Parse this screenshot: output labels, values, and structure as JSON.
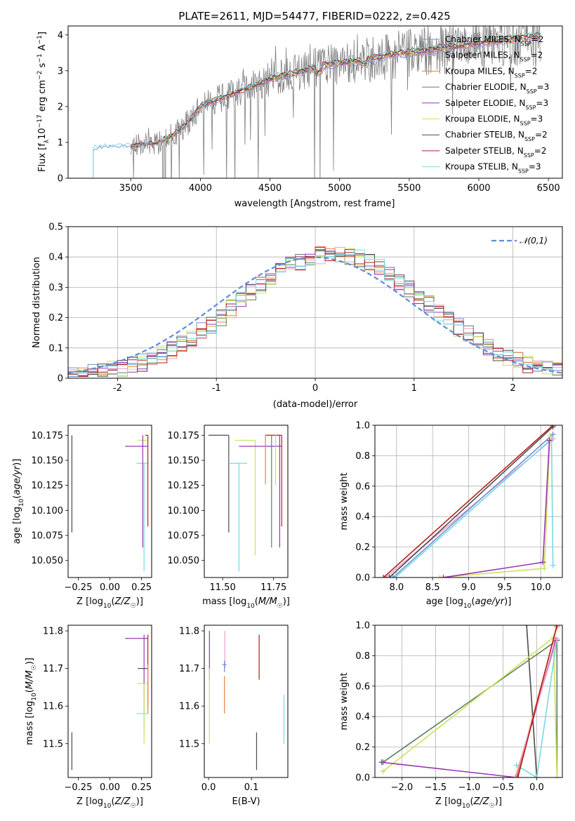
{
  "colors": {
    "chabrier_miles": "#6f8fd6",
    "salpeter_miles": "#e7a0cf",
    "kroupa_miles": "#e8823a",
    "chabrier_elodie": "#5c7f62",
    "salpeter_elodie": "#9a36b3",
    "kroupa_elodie": "#cde158",
    "chabrier_stelib": "#4b4b4b",
    "salpeter_stelib": "#b91d1d",
    "kroupa_stelib": "#78d9e3",
    "gauss": "#5b8dd9",
    "data": "#7f7f7f"
  },
  "chart_data": [
    {
      "type": "line",
      "title": "PLATE=2611, MJD=54477, FIBERID=0222, z=0.425",
      "xlabel": "wavelength [Angstrom, rest frame]",
      "ylabel": "Flux [f_λ 10^-17 erg cm^-2 s^-1 A^-1]",
      "xlim": [
        3050,
        6600
      ],
      "ylim": [
        0,
        4.25
      ],
      "xticks": [
        3500,
        4000,
        4500,
        5000,
        5500,
        6000,
        6500
      ],
      "yticks": [
        0,
        1,
        2,
        3,
        4
      ],
      "legend_position": "right",
      "series": [
        {
          "name": "Chabrier MILES, N_SSP=2",
          "key": "chabrier_miles"
        },
        {
          "name": "Salpeter MILES, N_SSP=2",
          "key": "salpeter_miles"
        },
        {
          "name": "Kroupa MILES, N_SSP=2",
          "key": "kroupa_miles"
        },
        {
          "name": "Chabrier ELODIE, N_SSP=3",
          "key": "chabrier_elodie"
        },
        {
          "name": "Salpeter ELODIE, N_SSP=3",
          "key": "salpeter_elodie"
        },
        {
          "name": "Kroupa ELODIE, N_SSP=3",
          "key": "kroupa_elodie"
        },
        {
          "name": "Chabrier STELIB, N_SSP=2",
          "key": "chabrier_stelib"
        },
        {
          "name": "Salpeter STELIB, N_SSP=2",
          "key": "salpeter_stelib"
        },
        {
          "name": "Kroupa STELIB, N_SSP=3",
          "key": "kroupa_stelib"
        }
      ],
      "continuum": [
        [
          3230,
          0.85
        ],
        [
          3300,
          0.9
        ],
        [
          3400,
          0.88
        ],
        [
          3500,
          0.9
        ],
        [
          3600,
          0.95
        ],
        [
          3700,
          1.0
        ],
        [
          3800,
          1.2
        ],
        [
          3900,
          1.5
        ],
        [
          4000,
          2.0
        ],
        [
          4100,
          2.15
        ],
        [
          4200,
          2.3
        ],
        [
          4300,
          2.45
        ],
        [
          4400,
          2.6
        ],
        [
          4500,
          2.75
        ],
        [
          4600,
          2.85
        ],
        [
          4700,
          2.95
        ],
        [
          4800,
          3.05
        ],
        [
          4900,
          3.15
        ],
        [
          5000,
          3.2
        ],
        [
          5200,
          3.3
        ],
        [
          5400,
          3.45
        ],
        [
          5600,
          3.55
        ],
        [
          5800,
          3.65
        ],
        [
          6000,
          3.75
        ],
        [
          6200,
          3.85
        ],
        [
          6450,
          3.95
        ]
      ]
    },
    {
      "type": "histogram",
      "xlabel": "(data-model)/error",
      "ylabel": "Normed distribution",
      "xlim": [
        -2.5,
        2.5
      ],
      "ylim": [
        0,
        0.5
      ],
      "xticks": [
        -2,
        -1,
        0,
        1,
        2
      ],
      "yticks": [
        0.0,
        0.1,
        0.2,
        0.3,
        0.4,
        0.5
      ],
      "grid": true,
      "legend_position": "top-right",
      "gauss_label": "𝒩(0,1)",
      "bin_width": 0.1
    },
    {
      "type": "scatter-errorbar",
      "xlabel": "Z [log10(Z/Z☉)]",
      "ylabel": "age  [log10(age/yr)]",
      "xlim": [
        -0.33,
        0.33
      ],
      "ylim": [
        10.033,
        10.185
      ],
      "xticks": [
        -0.25,
        0.0,
        0.25
      ],
      "xtick_labels": [
        "−0.25",
        "0.00",
        "0.25"
      ],
      "yticks": [
        10.05,
        10.075,
        10.1,
        10.125,
        10.15,
        10.175
      ],
      "ytick_labels": [
        "10.050",
        "10.075",
        "10.100",
        "10.125",
        "10.150",
        "10.175"
      ],
      "points": [
        {
          "key": "chabrier_stelib",
          "x": -0.3,
          "xl": -0.3,
          "xh": -0.3,
          "y": 10.175,
          "yl": 10.078,
          "yh": 10.175
        },
        {
          "key": "kroupa_elodie",
          "x": 0.27,
          "xl": 0.22,
          "xh": 0.3,
          "y": 10.17,
          "yl": 10.17,
          "yh": 10.17
        },
        {
          "key": "salpeter_elodie",
          "x": 0.27,
          "xl": 0.12,
          "xh": 0.3,
          "y": 10.164,
          "yl": 10.164,
          "yh": 10.164
        },
        {
          "key": "kroupa_stelib",
          "x": 0.27,
          "xl": 0.21,
          "xh": 0.3,
          "y": 10.147,
          "yl": 10.039,
          "yh": 10.147
        },
        {
          "key": "salpeter_stelib",
          "x": 0.3,
          "xl": 0.28,
          "xh": 0.3,
          "y": 10.175,
          "yl": 10.084,
          "yh": 10.175
        },
        {
          "key": "salpeter_elodie",
          "x": 0.26,
          "xl": 0.26,
          "xh": 0.26,
          "y": 10.175,
          "yl": 10.063,
          "yh": 10.175
        }
      ]
    },
    {
      "type": "scatter-errorbar",
      "xlabel": "mass [log10(M/M☉)]",
      "ylabel": "",
      "xlim": [
        11.41,
        11.82
      ],
      "ylim": [
        10.033,
        10.185
      ],
      "xticks": [
        11.5,
        11.75
      ],
      "xtick_labels": [
        "11.50",
        "11.75"
      ],
      "yticks": [
        10.05,
        10.075,
        10.1,
        10.125,
        10.15,
        10.175
      ],
      "ytick_labels": [
        "10.050",
        "10.075",
        "10.100",
        "10.125",
        "10.150",
        "10.175"
      ],
      "points": [
        {
          "key": "chabrier_stelib",
          "x": 11.53,
          "xl": 11.43,
          "xh": 11.53,
          "y": 10.175,
          "yl": 10.078,
          "yh": 10.175
        },
        {
          "key": "kroupa_elodie",
          "x": 11.66,
          "xl": 11.56,
          "xh": 11.66,
          "y": 10.17,
          "yl": 10.055,
          "yh": 10.17
        },
        {
          "key": "salpeter_elodie",
          "x": 11.78,
          "xl": 11.58,
          "xh": 11.79,
          "y": 10.164,
          "yl": 10.063,
          "yh": 10.175
        },
        {
          "key": "kroupa_stelib",
          "x": 11.58,
          "xl": 11.53,
          "xh": 11.62,
          "y": 10.147,
          "yl": 10.039,
          "yh": 10.147
        },
        {
          "key": "salpeter_stelib",
          "x": 11.79,
          "xl": 11.71,
          "xh": 11.79,
          "y": 10.175,
          "yl": 10.084,
          "yh": 10.175
        },
        {
          "key": "kroupa_miles",
          "x": 11.71,
          "xl": 11.71,
          "xh": 11.71,
          "y": 10.175,
          "yl": 10.126,
          "yh": 10.175
        },
        {
          "key": "chabrier_elodie",
          "x": 11.74,
          "xl": 11.74,
          "xh": 11.74,
          "y": 10.175,
          "yl": 10.063,
          "yh": 10.175
        },
        {
          "key": "kroupa_elodie",
          "x": 11.76,
          "xl": 11.76,
          "xh": 11.76,
          "y": 10.175,
          "yl": 10.125,
          "yh": 10.175
        }
      ]
    },
    {
      "type": "line",
      "xlabel": "age  [log10(age/yr)]",
      "ylabel": "mass weight",
      "xlim": [
        7.7,
        10.3
      ],
      "ylim": [
        0,
        1
      ],
      "xticks": [
        8.0,
        8.5,
        9.0,
        9.5,
        10.0
      ],
      "xtick_labels": [
        "8.0",
        "8.5",
        "9.0",
        "9.5",
        "10.0"
      ],
      "yticks": [
        0,
        0.2,
        0.4,
        0.6,
        0.8,
        1.0
      ],
      "ytick_labels": [
        "0.0",
        "0.2",
        "0.4",
        "0.6",
        "0.8",
        "1.0"
      ],
      "grid": true,
      "series": [
        {
          "key": "salpeter_miles",
          "points": [
            [
              7.85,
              0.0
            ],
            [
              10.17,
              0.91
            ]
          ]
        },
        {
          "key": "chabrier_miles",
          "points": [
            [
              7.95,
              0.0
            ],
            [
              10.17,
              0.94
            ]
          ]
        },
        {
          "key": "chabrier_stelib",
          "points": [
            [
              7.9,
              0.0
            ],
            [
              10.17,
              0.99
            ]
          ]
        },
        {
          "key": "salpeter_stelib",
          "points": [
            [
              7.82,
              0.0
            ],
            [
              10.17,
              1.0
            ]
          ]
        },
        {
          "key": "kroupa_stelib",
          "points": [
            [
              7.98,
              0.0
            ],
            [
              10.15,
              0.91
            ],
            [
              10.17,
              0.08
            ]
          ]
        },
        {
          "key": "kroupa_elodie",
          "points": [
            [
              8.6,
              0.0
            ],
            [
              10.05,
              0.06
            ],
            [
              10.13,
              0.93
            ]
          ]
        },
        {
          "key": "salpeter_elodie",
          "points": [
            [
              8.65,
              0.0
            ],
            [
              10.03,
              0.1
            ],
            [
              10.12,
              0.9
            ]
          ]
        }
      ]
    },
    {
      "type": "scatter-errorbar",
      "xlabel": "Z [log10(Z/Z☉)]",
      "ylabel": "mass [log10(M/M☉)]",
      "xlim": [
        -0.33,
        0.33
      ],
      "ylim": [
        11.41,
        11.815
      ],
      "xticks": [
        -0.25,
        0.0,
        0.25
      ],
      "xtick_labels": [
        "−0.25",
        "0.00",
        "0.25"
      ],
      "yticks": [
        11.5,
        11.6,
        11.7,
        11.8
      ],
      "ytick_labels": [
        "11.5",
        "11.6",
        "11.7",
        "11.8"
      ],
      "points": [
        {
          "key": "chabrier_stelib",
          "x": -0.3,
          "xl": -0.3,
          "xh": -0.3,
          "y": 11.53,
          "yl": 11.43,
          "yh": 11.53
        },
        {
          "key": "salpeter_elodie",
          "x": 0.27,
          "xl": 0.12,
          "xh": 0.3,
          "y": 11.78,
          "yl": 11.58,
          "yh": 11.79
        },
        {
          "key": "kroupa_stelib",
          "x": 0.27,
          "xl": 0.21,
          "xh": 0.3,
          "y": 11.58,
          "yl": 11.53,
          "yh": 11.62
        },
        {
          "key": "kroupa_elodie",
          "x": 0.27,
          "xl": 0.22,
          "xh": 0.3,
          "y": 11.66,
          "yl": 11.5,
          "yh": 11.66
        },
        {
          "key": "chabrier_stelib",
          "x": 0.27,
          "xl": 0.22,
          "xh": 0.3,
          "y": 11.7,
          "yl": 11.7,
          "yh": 11.7
        },
        {
          "key": "salpeter_stelib",
          "x": 0.3,
          "xl": 0.3,
          "xh": 0.3,
          "y": 11.79,
          "yl": 11.6,
          "yh": 11.79
        },
        {
          "key": "kroupa_miles",
          "x": 0.3,
          "xl": 0.3,
          "xh": 0.3,
          "y": 11.71,
          "yl": 11.58,
          "yh": 11.71
        }
      ]
    },
    {
      "type": "scatter-errorbar",
      "xlabel": "E(B-V)",
      "ylabel": "",
      "xlim": [
        -0.01,
        0.185
      ],
      "ylim": [
        11.41,
        11.815
      ],
      "xticks": [
        0.0,
        0.1
      ],
      "xtick_labels": [
        "0.0",
        "0.1"
      ],
      "yticks": [
        11.5,
        11.6,
        11.7,
        11.8
      ],
      "ytick_labels": [
        "11.5",
        "11.6",
        "11.7",
        "11.8"
      ],
      "points": [
        {
          "key": "salpeter_elodie",
          "x": 0.002,
          "xl": 0.002,
          "xh": 0.002,
          "y": 11.8,
          "yl": 11.67,
          "yh": 11.8
        },
        {
          "key": "kroupa_elodie",
          "x": 0.002,
          "xl": 0.002,
          "xh": 0.002,
          "y": 11.7,
          "yl": 11.5,
          "yh": 11.7
        },
        {
          "key": "salpeter_miles",
          "x": 0.038,
          "xl": 0.038,
          "xh": 0.038,
          "y": 11.8,
          "yl": 11.7,
          "yh": 11.8
        },
        {
          "key": "chabrier_miles",
          "x": 0.037,
          "xl": 0.032,
          "xh": 0.042,
          "y": 11.71,
          "yl": 11.69,
          "yh": 11.72
        },
        {
          "key": "kroupa_miles",
          "x": 0.037,
          "xl": 0.037,
          "xh": 0.037,
          "y": 11.68,
          "yl": 11.58,
          "yh": 11.68
        },
        {
          "key": "chabrier_stelib",
          "x": 0.112,
          "xl": 0.112,
          "xh": 0.112,
          "y": 11.53,
          "yl": 11.43,
          "yh": 11.53
        },
        {
          "key": "salpeter_stelib",
          "x": 0.118,
          "xl": 0.118,
          "xh": 0.118,
          "y": 11.79,
          "yl": 11.67,
          "yh": 11.79
        },
        {
          "key": "kroupa_stelib",
          "x": 0.176,
          "xl": 0.176,
          "xh": 0.176,
          "y": 11.63,
          "yl": 11.5,
          "yh": 11.63
        }
      ]
    },
    {
      "type": "line",
      "xlabel": "Z [log10(Z/Z☉)]",
      "ylabel": "mass weight",
      "xlim": [
        -2.4,
        0.38
      ],
      "ylim": [
        0,
        1
      ],
      "xticks": [
        -2.0,
        -1.5,
        -1.0,
        -0.5,
        0.0
      ],
      "xtick_labels": [
        "−2.0",
        "−1.5",
        "−1.0",
        "−0.5",
        "0.0"
      ],
      "yticks": [
        0,
        0.2,
        0.4,
        0.6,
        0.8,
        1.0
      ],
      "ytick_labels": [
        "0.0",
        "0.2",
        "0.4",
        "0.6",
        "0.8",
        "1.0"
      ],
      "grid": true,
      "series": [
        {
          "key": "chabrier_stelib",
          "points": [
            [
              -0.15,
              1.0
            ],
            [
              0.0,
              0.0
            ]
          ]
        },
        {
          "key": "chabrier_elodie",
          "points": [
            [
              -2.28,
              0.1
            ],
            [
              0.3,
              0.9
            ],
            [
              0.3,
              0.0
            ]
          ]
        },
        {
          "key": "kroupa_elodie",
          "points": [
            [
              -2.28,
              0.04
            ],
            [
              0.25,
              0.92
            ],
            [
              0.3,
              0.0
            ]
          ]
        },
        {
          "key": "salpeter_elodie",
          "points": [
            [
              -2.3,
              0.1
            ],
            [
              -0.3,
              0.0
            ],
            [
              0.28,
              0.9
            ]
          ]
        },
        {
          "key": "kroupa_stelib",
          "points": [
            [
              -0.3,
              0.08
            ],
            [
              0.0,
              0.0
            ],
            [
              0.3,
              0.91
            ]
          ]
        },
        {
          "key": "kroupa_miles",
          "points": [
            [
              -0.3,
              0.0
            ],
            [
              0.3,
              0.99
            ]
          ]
        },
        {
          "key": "salpeter_miles",
          "points": [
            [
              -0.32,
              0.0
            ],
            [
              0.3,
              0.91
            ]
          ]
        },
        {
          "key": "salpeter_stelib",
          "points": [
            [
              -0.28,
              0.0
            ],
            [
              0.3,
              1.0
            ]
          ]
        }
      ]
    }
  ]
}
